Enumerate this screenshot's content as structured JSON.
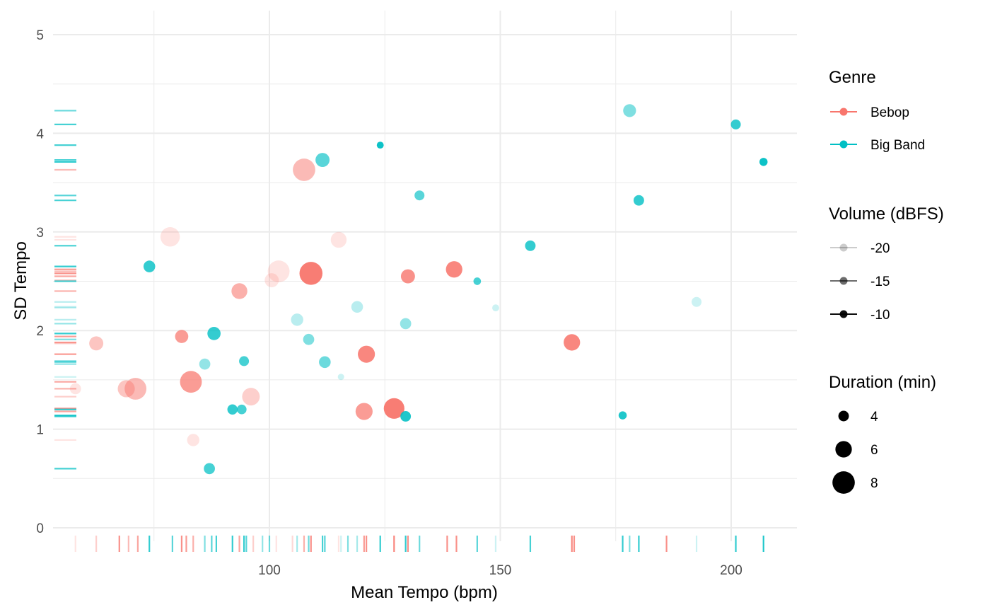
{
  "chart_data": {
    "type": "scatter",
    "xlabel": "Mean Tempo (bpm)",
    "ylabel": "SD Tempo",
    "xlim": [
      56,
      216
    ],
    "ylim": [
      0,
      5.2
    ],
    "x_ticks": [
      100,
      150,
      200
    ],
    "y_ticks": [
      0,
      1,
      2,
      3,
      4,
      5
    ],
    "x_tick_labels": [
      "100",
      "150",
      "200"
    ],
    "y_tick_labels": [
      "0",
      "1",
      "2",
      "3",
      "4",
      "5"
    ],
    "grid": true,
    "rug": true,
    "legend_position": "right",
    "colors": {
      "Bebop": "#F8766D",
      "Big Band": "#00BFC4"
    },
    "legend": {
      "genre": {
        "title": "Genre",
        "items": [
          "Bebop",
          "Big Band"
        ]
      },
      "volume": {
        "title": "Volume (dBFS)",
        "items": [
          "-20",
          "-15",
          "-10"
        ],
        "values": [
          -20,
          -15,
          -10
        ]
      },
      "duration": {
        "title": "Duration (min)",
        "items": [
          "4",
          "6",
          "8"
        ],
        "values": [
          4,
          6,
          8
        ]
      }
    },
    "points": [
      {
        "genre": "Bebop",
        "x": 58,
        "y": 1.41,
        "duration": 4.2,
        "volume": -21
      },
      {
        "genre": "Bebop",
        "x": 62.5,
        "y": 1.87,
        "duration": 5.2,
        "volume": -17
      },
      {
        "genre": "Bebop",
        "x": 69,
        "y": 1.41,
        "duration": 6.2,
        "volume": -17
      },
      {
        "genre": "Bebop",
        "x": 71,
        "y": 1.41,
        "duration": 7.8,
        "volume": -16
      },
      {
        "genre": "Bebop",
        "x": 78.5,
        "y": 2.95,
        "duration": 7.0,
        "volume": -22
      },
      {
        "genre": "Bebop",
        "x": 81,
        "y": 1.94,
        "duration": 4.9,
        "volume": -13
      },
      {
        "genre": "Bebop",
        "x": 83.5,
        "y": 0.89,
        "duration": 4.6,
        "volume": -20
      },
      {
        "genre": "Bebop",
        "x": 83,
        "y": 1.48,
        "duration": 7.8,
        "volume": -13
      },
      {
        "genre": "Bebop",
        "x": 93.5,
        "y": 2.4,
        "duration": 5.8,
        "volume": -15
      },
      {
        "genre": "Bebop",
        "x": 96,
        "y": 1.33,
        "duration": 6.4,
        "volume": -18
      },
      {
        "genre": "Bebop",
        "x": 100.5,
        "y": 2.51,
        "duration": 5.2,
        "volume": -20
      },
      {
        "genre": "Bebop",
        "x": 102,
        "y": 2.6,
        "duration": 7.8,
        "volume": -21
      },
      {
        "genre": "Bebop",
        "x": 107.5,
        "y": 3.63,
        "duration": 8.0,
        "volume": -16
      },
      {
        "genre": "Bebop",
        "x": 109,
        "y": 2.58,
        "duration": 8.2,
        "volume": -10
      },
      {
        "genre": "Bebop",
        "x": 115,
        "y": 2.92,
        "duration": 5.8,
        "volume": -22
      },
      {
        "genre": "Bebop",
        "x": 120.5,
        "y": 1.18,
        "duration": 6.2,
        "volume": -13
      },
      {
        "genre": "Bebop",
        "x": 121,
        "y": 1.76,
        "duration": 6.2,
        "volume": -11
      },
      {
        "genre": "Bebop",
        "x": 127,
        "y": 1.21,
        "duration": 7.4,
        "volume": -10
      },
      {
        "genre": "Bebop",
        "x": 130,
        "y": 2.55,
        "duration": 5.2,
        "volume": -12
      },
      {
        "genre": "Bebop",
        "x": 140,
        "y": 2.62,
        "duration": 6.0,
        "volume": -11
      },
      {
        "genre": "Bebop",
        "x": 165.5,
        "y": 1.88,
        "duration": 6.0,
        "volume": -11
      },
      {
        "genre": "Big Band",
        "x": 74,
        "y": 2.65,
        "duration": 4.4,
        "volume": -12
      },
      {
        "genre": "Big Band",
        "x": 86,
        "y": 1.66,
        "duration": 4.2,
        "volume": -17
      },
      {
        "genre": "Big Band",
        "x": 87,
        "y": 0.6,
        "duration": 4.2,
        "volume": -13
      },
      {
        "genre": "Big Band",
        "x": 88,
        "y": 1.97,
        "duration": 4.9,
        "volume": -12
      },
      {
        "genre": "Big Band",
        "x": 92,
        "y": 1.2,
        "duration": 3.9,
        "volume": -12
      },
      {
        "genre": "Big Band",
        "x": 94,
        "y": 1.2,
        "duration": 3.7,
        "volume": -13
      },
      {
        "genre": "Big Band",
        "x": 94.5,
        "y": 1.69,
        "duration": 3.8,
        "volume": -13
      },
      {
        "genre": "Big Band",
        "x": 106,
        "y": 2.11,
        "duration": 4.6,
        "volume": -19
      },
      {
        "genre": "Big Band",
        "x": 108.5,
        "y": 1.91,
        "duration": 4.2,
        "volume": -16
      },
      {
        "genre": "Big Band",
        "x": 111.5,
        "y": 3.73,
        "duration": 5.2,
        "volume": -14
      },
      {
        "genre": "Big Band",
        "x": 112,
        "y": 1.68,
        "duration": 4.4,
        "volume": -15
      },
      {
        "genre": "Big Band",
        "x": 115.5,
        "y": 1.53,
        "duration": 2.6,
        "volume": -20
      },
      {
        "genre": "Big Band",
        "x": 119,
        "y": 2.24,
        "duration": 4.4,
        "volume": -19
      },
      {
        "genre": "Big Band",
        "x": 124,
        "y": 3.88,
        "duration": 2.8,
        "volume": -10
      },
      {
        "genre": "Big Band",
        "x": 129.5,
        "y": 1.13,
        "duration": 4.0,
        "volume": -11
      },
      {
        "genre": "Big Band",
        "x": 129.5,
        "y": 2.07,
        "duration": 4.2,
        "volume": -17
      },
      {
        "genre": "Big Band",
        "x": 132.5,
        "y": 3.37,
        "duration": 3.8,
        "volume": -14
      },
      {
        "genre": "Big Band",
        "x": 145,
        "y": 2.5,
        "duration": 3.0,
        "volume": -13
      },
      {
        "genre": "Big Band",
        "x": 149,
        "y": 2.23,
        "duration": 2.8,
        "volume": -20
      },
      {
        "genre": "Big Band",
        "x": 156.5,
        "y": 2.86,
        "duration": 4.0,
        "volume": -12
      },
      {
        "genre": "Big Band",
        "x": 176.5,
        "y": 1.14,
        "duration": 3.2,
        "volume": -11
      },
      {
        "genre": "Big Band",
        "x": 178,
        "y": 4.23,
        "duration": 4.8,
        "volume": -16
      },
      {
        "genre": "Big Band",
        "x": 180,
        "y": 3.32,
        "duration": 4.0,
        "volume": -12
      },
      {
        "genre": "Big Band",
        "x": 192.5,
        "y": 2.29,
        "duration": 3.8,
        "volume": -20
      },
      {
        "genre": "Big Band",
        "x": 201,
        "y": 4.09,
        "duration": 3.8,
        "volume": -12
      },
      {
        "genre": "Big Band",
        "x": 207,
        "y": 3.71,
        "duration": 3.2,
        "volume": -10
      }
    ],
    "x_rug": [
      {
        "genre": "Bebop",
        "x": 58,
        "volume": -20
      },
      {
        "genre": "Bebop",
        "x": 62.5,
        "volume": -18
      },
      {
        "genre": "Bebop",
        "x": 67.5,
        "volume": -12
      },
      {
        "genre": "Bebop",
        "x": 69.5,
        "volume": -16
      },
      {
        "genre": "Bebop",
        "x": 71.5,
        "volume": -14
      },
      {
        "genre": "Bebop",
        "x": 81,
        "volume": -12
      },
      {
        "genre": "Bebop",
        "x": 82,
        "volume": -13
      },
      {
        "genre": "Bebop",
        "x": 83.5,
        "volume": -15
      },
      {
        "genre": "Bebop",
        "x": 93.5,
        "volume": -14
      },
      {
        "genre": "Bebop",
        "x": 96.5,
        "volume": -18
      },
      {
        "genre": "Bebop",
        "x": 101.5,
        "volume": -20
      },
      {
        "genre": "Bebop",
        "x": 105,
        "volume": -19
      },
      {
        "genre": "Bebop",
        "x": 107.5,
        "volume": -15
      },
      {
        "genre": "Bebop",
        "x": 109,
        "volume": -12
      },
      {
        "genre": "Bebop",
        "x": 115,
        "volume": -20
      },
      {
        "genre": "Bebop",
        "x": 120.5,
        "volume": -13
      },
      {
        "genre": "Bebop",
        "x": 121,
        "volume": -12
      },
      {
        "genre": "Bebop",
        "x": 127,
        "volume": -11
      },
      {
        "genre": "Bebop",
        "x": 130,
        "volume": -12
      },
      {
        "genre": "Bebop",
        "x": 138.5,
        "volume": -12
      },
      {
        "genre": "Bebop",
        "x": 140.5,
        "volume": -12
      },
      {
        "genre": "Bebop",
        "x": 165.5,
        "volume": -11
      },
      {
        "genre": "Bebop",
        "x": 166,
        "volume": -12
      },
      {
        "genre": "Bebop",
        "x": 186,
        "volume": -12
      },
      {
        "genre": "Big Band",
        "x": 74,
        "volume": -12
      },
      {
        "genre": "Big Band",
        "x": 79,
        "volume": -14
      },
      {
        "genre": "Big Band",
        "x": 86,
        "volume": -16
      },
      {
        "genre": "Big Band",
        "x": 87.5,
        "volume": -14
      },
      {
        "genre": "Big Band",
        "x": 88.5,
        "volume": -13
      },
      {
        "genre": "Big Band",
        "x": 92,
        "volume": -12
      },
      {
        "genre": "Big Band",
        "x": 94.5,
        "volume": -12
      },
      {
        "genre": "Big Band",
        "x": 95,
        "volume": -14
      },
      {
        "genre": "Big Band",
        "x": 98.5,
        "volume": -17
      },
      {
        "genre": "Big Band",
        "x": 100,
        "volume": -15
      },
      {
        "genre": "Big Band",
        "x": 106,
        "volume": -18
      },
      {
        "genre": "Big Band",
        "x": 108.5,
        "volume": -15
      },
      {
        "genre": "Big Band",
        "x": 111.5,
        "volume": -13
      },
      {
        "genre": "Big Band",
        "x": 112,
        "volume": -14
      },
      {
        "genre": "Big Band",
        "x": 115.5,
        "volume": -20
      },
      {
        "genre": "Big Band",
        "x": 117,
        "volume": -16
      },
      {
        "genre": "Big Band",
        "x": 119,
        "volume": -18
      },
      {
        "genre": "Big Band",
        "x": 124,
        "volume": -12
      },
      {
        "genre": "Big Band",
        "x": 129.5,
        "volume": -12
      },
      {
        "genre": "Big Band",
        "x": 132.5,
        "volume": -15
      },
      {
        "genre": "Big Band",
        "x": 145,
        "volume": -14
      },
      {
        "genre": "Big Band",
        "x": 149,
        "volume": -20
      },
      {
        "genre": "Big Band",
        "x": 156.5,
        "volume": -13
      },
      {
        "genre": "Big Band",
        "x": 176.5,
        "volume": -12
      },
      {
        "genre": "Big Band",
        "x": 178,
        "volume": -16
      },
      {
        "genre": "Big Band",
        "x": 180,
        "volume": -12
      },
      {
        "genre": "Big Band",
        "x": 192.5,
        "volume": -20
      },
      {
        "genre": "Big Band",
        "x": 201,
        "volume": -12
      },
      {
        "genre": "Big Band",
        "x": 207,
        "volume": -11
      }
    ],
    "y_rug": [
      {
        "genre": "Big Band",
        "y": 4.23,
        "volume": -15
      },
      {
        "genre": "Big Band",
        "y": 4.09,
        "volume": -13
      },
      {
        "genre": "Big Band",
        "y": 3.88,
        "volume": -13
      },
      {
        "genre": "Big Band",
        "y": 3.73,
        "volume": -13
      },
      {
        "genre": "Big Band",
        "y": 3.71,
        "volume": -11
      },
      {
        "genre": "Bebop",
        "y": 3.63,
        "volume": -16
      },
      {
        "genre": "Big Band",
        "y": 3.37,
        "volume": -14
      },
      {
        "genre": "Big Band",
        "y": 3.32,
        "volume": -13
      },
      {
        "genre": "Bebop",
        "y": 2.95,
        "volume": -21
      },
      {
        "genre": "Bebop",
        "y": 2.92,
        "volume": -20
      },
      {
        "genre": "Big Band",
        "y": 2.86,
        "volume": -13
      },
      {
        "genre": "Big Band",
        "y": 2.65,
        "volume": -12
      },
      {
        "genre": "Bebop",
        "y": 2.62,
        "volume": -13
      },
      {
        "genre": "Bebop",
        "y": 2.6,
        "volume": -16
      },
      {
        "genre": "Bebop",
        "y": 2.58,
        "volume": -12
      },
      {
        "genre": "Bebop",
        "y": 2.55,
        "volume": -14
      },
      {
        "genre": "Bebop",
        "y": 2.51,
        "volume": -17
      },
      {
        "genre": "Big Band",
        "y": 2.5,
        "volume": -13
      },
      {
        "genre": "Bebop",
        "y": 2.4,
        "volume": -15
      },
      {
        "genre": "Big Band",
        "y": 2.29,
        "volume": -19
      },
      {
        "genre": "Big Band",
        "y": 2.24,
        "volume": -19
      },
      {
        "genre": "Big Band",
        "y": 2.23,
        "volume": -20
      },
      {
        "genre": "Big Band",
        "y": 2.11,
        "volume": -19
      },
      {
        "genre": "Big Band",
        "y": 2.07,
        "volume": -17
      },
      {
        "genre": "Big Band",
        "y": 1.97,
        "volume": -12
      },
      {
        "genre": "Bebop",
        "y": 1.94,
        "volume": -13
      },
      {
        "genre": "Big Band",
        "y": 1.91,
        "volume": -16
      },
      {
        "genre": "Bebop",
        "y": 1.88,
        "volume": -13
      },
      {
        "genre": "Bebop",
        "y": 1.87,
        "volume": -17
      },
      {
        "genre": "Bebop",
        "y": 1.76,
        "volume": -13
      },
      {
        "genre": "Big Band",
        "y": 1.69,
        "volume": -14
      },
      {
        "genre": "Big Band",
        "y": 1.68,
        "volume": -15
      },
      {
        "genre": "Big Band",
        "y": 1.66,
        "volume": -17
      },
      {
        "genre": "Big Band",
        "y": 1.53,
        "volume": -20
      },
      {
        "genre": "Bebop",
        "y": 1.48,
        "volume": -14
      },
      {
        "genre": "Bebop",
        "y": 1.41,
        "volume": -15
      },
      {
        "genre": "Bebop",
        "y": 1.33,
        "volume": -18
      },
      {
        "genre": "Bebop",
        "y": 1.21,
        "volume": -12
      },
      {
        "genre": "Big Band",
        "y": 1.2,
        "volume": -12
      },
      {
        "genre": "Bebop",
        "y": 1.18,
        "volume": -14
      },
      {
        "genre": "Big Band",
        "y": 1.14,
        "volume": -12
      },
      {
        "genre": "Big Band",
        "y": 1.13,
        "volume": -12
      },
      {
        "genre": "Bebop",
        "y": 0.89,
        "volume": -20
      },
      {
        "genre": "Big Band",
        "y": 0.6,
        "volume": -13
      }
    ]
  }
}
